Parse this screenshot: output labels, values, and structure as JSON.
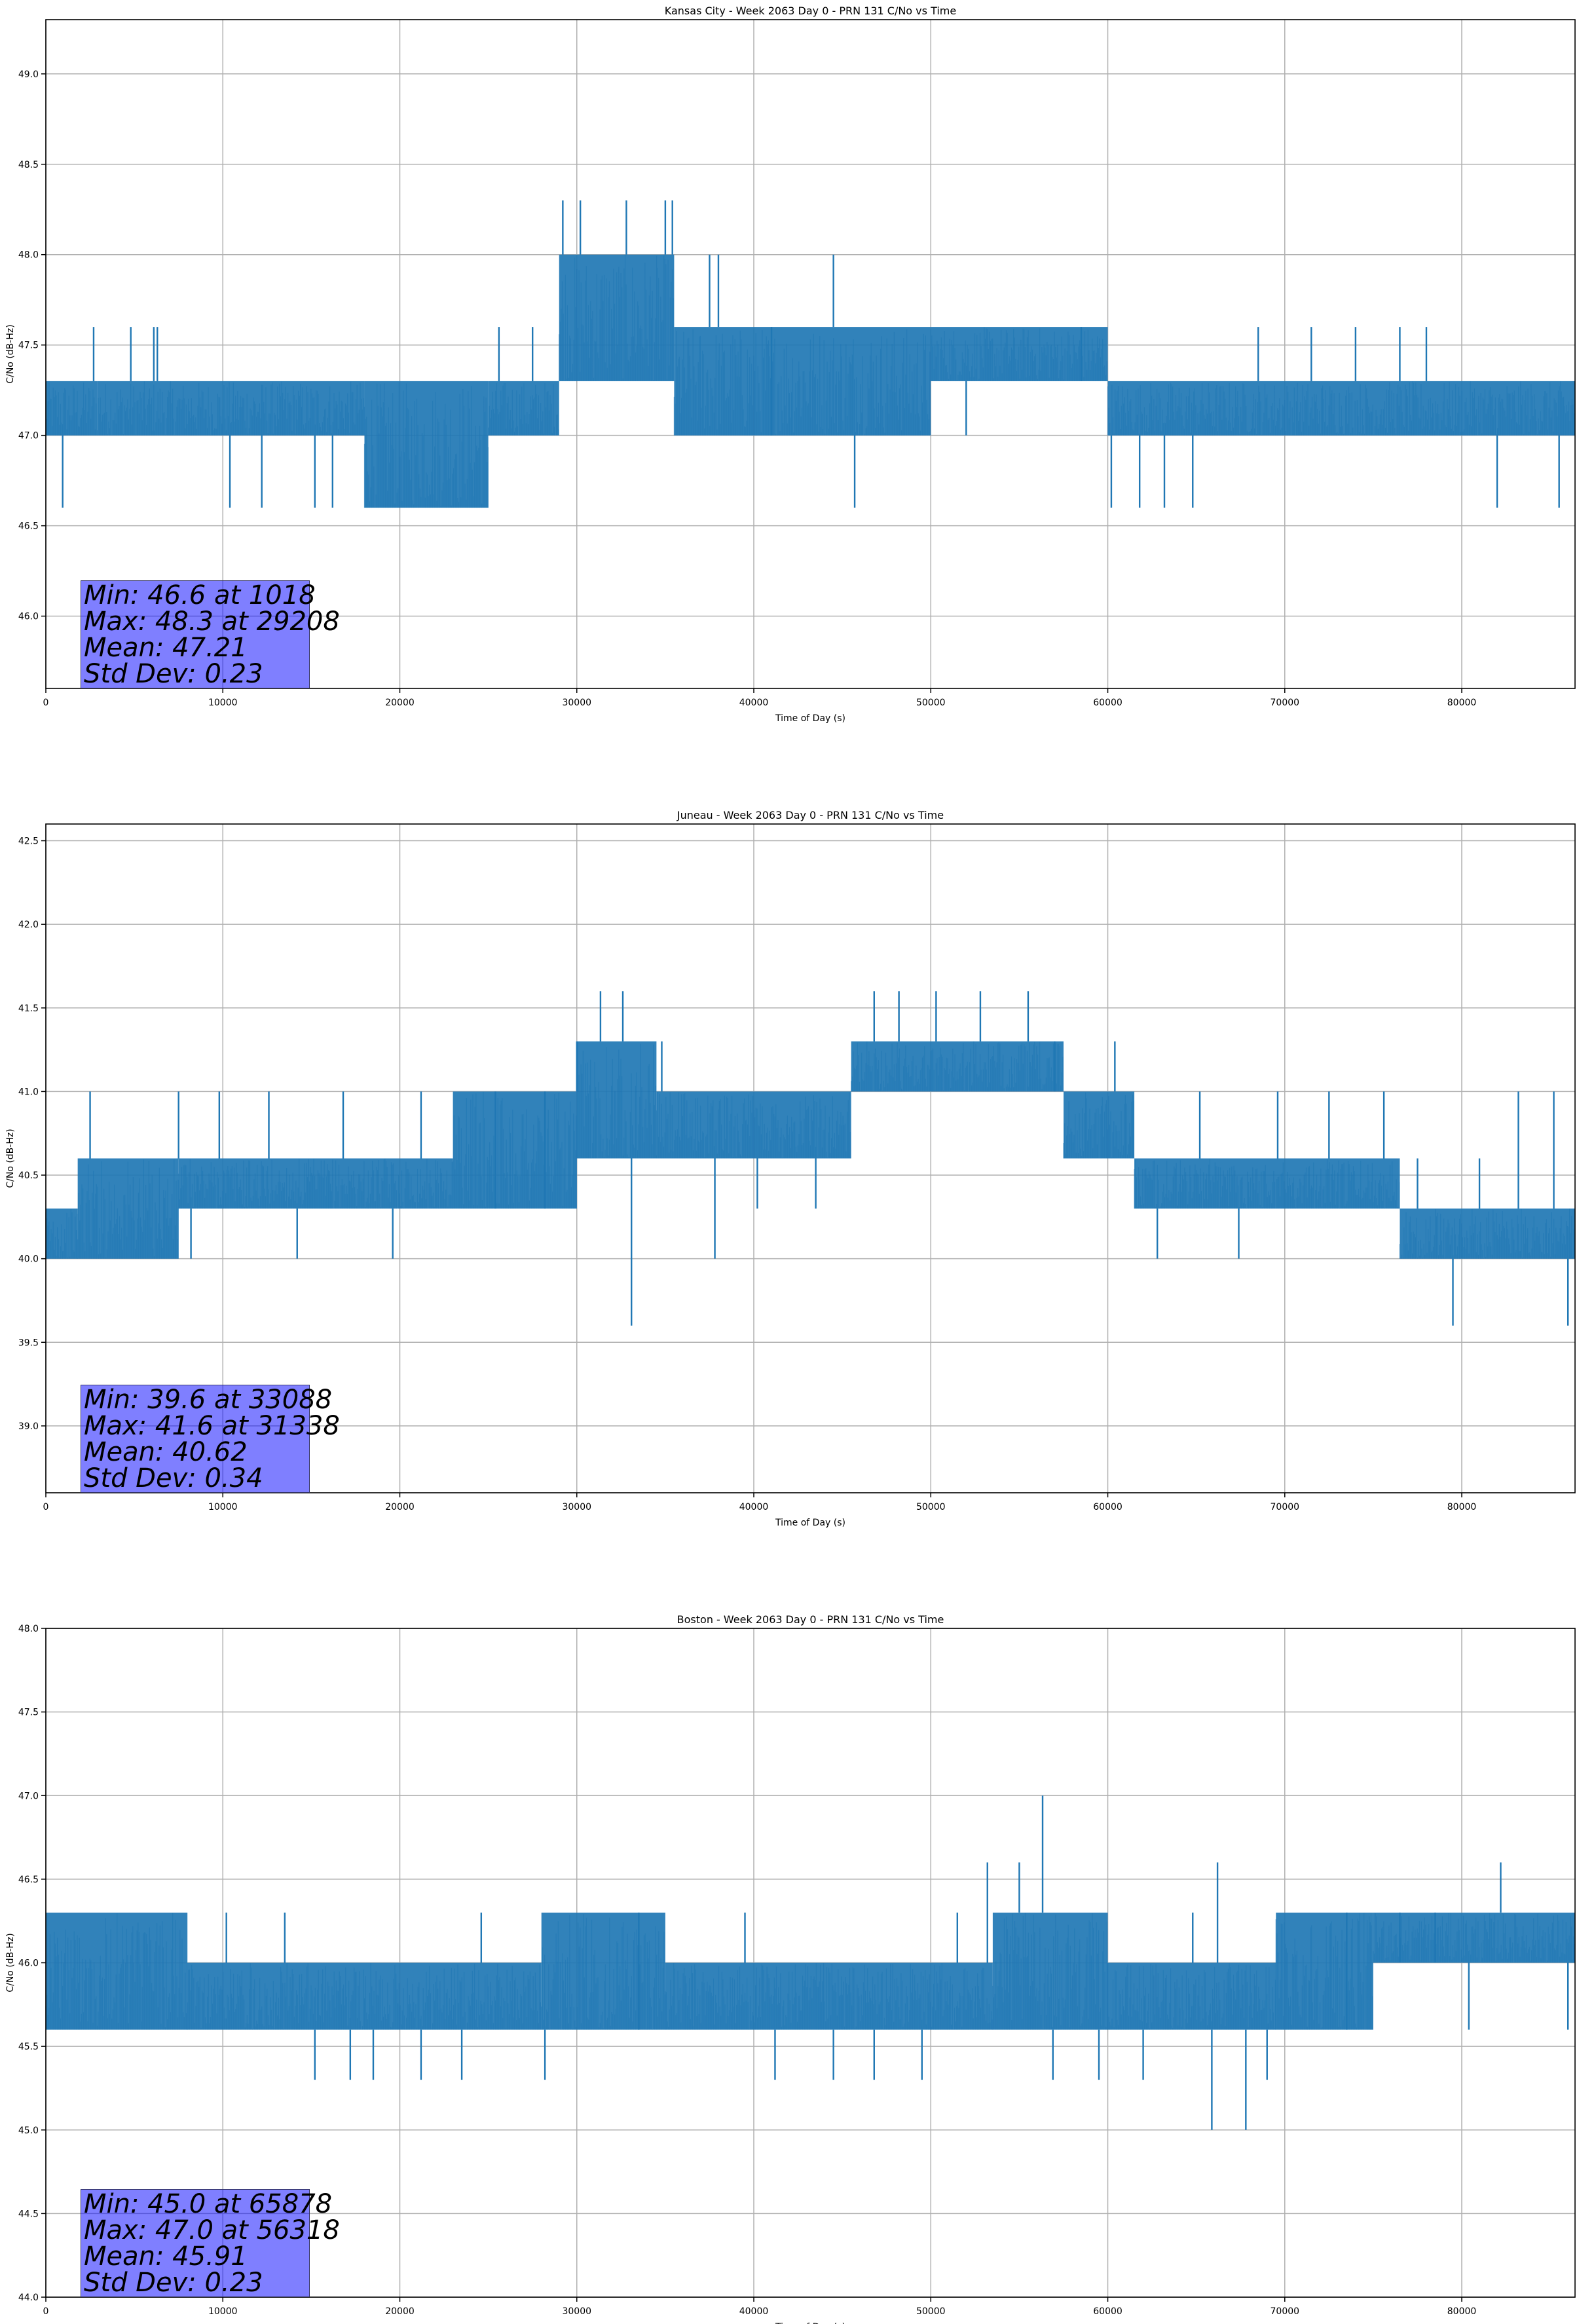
{
  "colors": {
    "line": "#1f77b4",
    "grid": "#b0b0b0",
    "axes": "#000000",
    "stats_box": "#8080ff"
  },
  "chart_data": [
    {
      "type": "line",
      "title": "Kansas City - Week 2063 Day 0 - PRN 131 C/No vs Time",
      "xlabel": "Time of Day (s)",
      "ylabel": "C/No (dB-Hz)",
      "xlim": [
        0,
        86400
      ],
      "ylim": [
        45.6,
        49.3
      ],
      "xticks": [
        "0",
        "10000",
        "20000",
        "30000",
        "40000",
        "50000",
        "60000",
        "70000",
        "80000"
      ],
      "yticks": [
        "46.0",
        "46.5",
        "47.0",
        "47.5",
        "48.0",
        "48.5",
        "49.0"
      ],
      "grid": true,
      "stats": [
        "Min: 46.6 at 1018",
        "Max: 48.3 at 29208",
        "Mean: 47.21",
        "Std Dev: 0.23"
      ],
      "series": [
        {
          "segments": [
            {
              "x": [
                0,
                2900
              ],
              "lo": 47.0,
              "hi": 47.3
            },
            {
              "x": [
                2900,
                18000
              ],
              "lo": 47.0,
              "hi": 47.3
            },
            {
              "x": [
                18000,
                25000
              ],
              "lo": 46.6,
              "hi": 47.3
            },
            {
              "x": [
                25000,
                29000
              ],
              "lo": 47.0,
              "hi": 47.3
            },
            {
              "x": [
                29000,
                35500
              ],
              "lo": 47.3,
              "hi": 48.0
            },
            {
              "x": [
                35500,
                50000
              ],
              "lo": 47.0,
              "hi": 47.6
            },
            {
              "x": [
                50000,
                60000
              ],
              "lo": 47.3,
              "hi": 47.6
            },
            {
              "x": [
                60000,
                86400
              ],
              "lo": 47.0,
              "hi": 47.3
            }
          ],
          "spikes": [
            {
              "x": 950,
              "y": 46.6
            },
            {
              "x": 2700,
              "y": 47.6
            },
            {
              "x": 4800,
              "y": 47.6
            },
            {
              "x": 6100,
              "y": 47.6
            },
            {
              "x": 6300,
              "y": 47.6
            },
            {
              "x": 10400,
              "y": 46.6
            },
            {
              "x": 12200,
              "y": 46.6
            },
            {
              "x": 15200,
              "y": 46.6
            },
            {
              "x": 16200,
              "y": 46.6
            },
            {
              "x": 25600,
              "y": 47.6
            },
            {
              "x": 27500,
              "y": 47.6
            },
            {
              "x": 29208,
              "y": 48.3
            },
            {
              "x": 30200,
              "y": 48.3
            },
            {
              "x": 32800,
              "y": 48.3
            },
            {
              "x": 35000,
              "y": 48.3
            },
            {
              "x": 35400,
              "y": 48.3
            },
            {
              "x": 37500,
              "y": 48.0
            },
            {
              "x": 38000,
              "y": 48.0
            },
            {
              "x": 41000,
              "y": 47.6
            },
            {
              "x": 44500,
              "y": 48.0
            },
            {
              "x": 45700,
              "y": 46.6
            },
            {
              "x": 52000,
              "y": 47.0
            },
            {
              "x": 58500,
              "y": 47.6
            },
            {
              "x": 60200,
              "y": 46.6
            },
            {
              "x": 61800,
              "y": 46.6
            },
            {
              "x": 63200,
              "y": 46.6
            },
            {
              "x": 64800,
              "y": 46.6
            },
            {
              "x": 68500,
              "y": 47.6
            },
            {
              "x": 71500,
              "y": 47.6
            },
            {
              "x": 74000,
              "y": 47.6
            },
            {
              "x": 76500,
              "y": 47.6
            },
            {
              "x": 78000,
              "y": 47.6
            },
            {
              "x": 82000,
              "y": 46.6
            },
            {
              "x": 85500,
              "y": 46.6
            }
          ]
        }
      ]
    },
    {
      "type": "line",
      "title": "Juneau - Week 2063 Day 0 - PRN 131 C/No vs Time",
      "xlabel": "Time of Day (s)",
      "ylabel": "C/No (dB-Hz)",
      "xlim": [
        0,
        86400
      ],
      "ylim": [
        38.6,
        42.6
      ],
      "xticks": [
        "0",
        "10000",
        "20000",
        "30000",
        "40000",
        "50000",
        "60000",
        "70000",
        "80000"
      ],
      "yticks": [
        "39.0",
        "39.5",
        "40.0",
        "40.5",
        "41.0",
        "41.5",
        "42.0",
        "42.5"
      ],
      "grid": true,
      "stats": [
        "Min: 39.6 at 33088",
        "Max: 41.6 at 31338",
        "Mean: 40.62",
        "Std Dev: 0.34"
      ],
      "series": [
        {
          "segments": [
            {
              "x": [
                0,
                1800
              ],
              "lo": 40.0,
              "hi": 40.3
            },
            {
              "x": [
                1800,
                7500
              ],
              "lo": 40.0,
              "hi": 40.6
            },
            {
              "x": [
                7500,
                23000
              ],
              "lo": 40.3,
              "hi": 40.6
            },
            {
              "x": [
                23000,
                30000
              ],
              "lo": 40.3,
              "hi": 41.0
            },
            {
              "x": [
                30000,
                34500
              ],
              "lo": 40.6,
              "hi": 41.3
            },
            {
              "x": [
                34500,
                45500
              ],
              "lo": 40.6,
              "hi": 41.0
            },
            {
              "x": [
                45500,
                57500
              ],
              "lo": 41.0,
              "hi": 41.3
            },
            {
              "x": [
                57500,
                61500
              ],
              "lo": 40.6,
              "hi": 41.0
            },
            {
              "x": [
                61500,
                76500
              ],
              "lo": 40.3,
              "hi": 40.6
            },
            {
              "x": [
                76500,
                86400
              ],
              "lo": 40.0,
              "hi": 40.3
            }
          ],
          "spikes": [
            {
              "x": 2500,
              "y": 41.0
            },
            {
              "x": 5200,
              "y": 40.0
            },
            {
              "x": 7500,
              "y": 41.0
            },
            {
              "x": 8200,
              "y": 40.0
            },
            {
              "x": 9800,
              "y": 41.0
            },
            {
              "x": 12600,
              "y": 41.0
            },
            {
              "x": 14200,
              "y": 40.0
            },
            {
              "x": 16800,
              "y": 41.0
            },
            {
              "x": 19600,
              "y": 40.0
            },
            {
              "x": 21200,
              "y": 41.0
            },
            {
              "x": 25400,
              "y": 41.0
            },
            {
              "x": 28200,
              "y": 41.0
            },
            {
              "x": 30000,
              "y": 41.3
            },
            {
              "x": 31338,
              "y": 41.6
            },
            {
              "x": 32600,
              "y": 41.6
            },
            {
              "x": 33088,
              "y": 39.6
            },
            {
              "x": 34800,
              "y": 41.3
            },
            {
              "x": 37800,
              "y": 40.0
            },
            {
              "x": 40200,
              "y": 40.3
            },
            {
              "x": 43500,
              "y": 40.3
            },
            {
              "x": 46800,
              "y": 41.6
            },
            {
              "x": 48200,
              "y": 41.6
            },
            {
              "x": 50300,
              "y": 41.6
            },
            {
              "x": 52800,
              "y": 41.6
            },
            {
              "x": 55500,
              "y": 41.6
            },
            {
              "x": 57000,
              "y": 41.3
            },
            {
              "x": 58600,
              "y": 40.6
            },
            {
              "x": 60400,
              "y": 41.3
            },
            {
              "x": 62800,
              "y": 40.0
            },
            {
              "x": 65200,
              "y": 41.0
            },
            {
              "x": 67400,
              "y": 40.0
            },
            {
              "x": 69600,
              "y": 41.0
            },
            {
              "x": 72500,
              "y": 41.0
            },
            {
              "x": 75600,
              "y": 41.0
            },
            {
              "x": 77500,
              "y": 40.6
            },
            {
              "x": 79500,
              "y": 39.6
            },
            {
              "x": 81000,
              "y": 40.6
            },
            {
              "x": 83200,
              "y": 41.0
            },
            {
              "x": 85200,
              "y": 41.0
            },
            {
              "x": 86000,
              "y": 39.6
            }
          ]
        }
      ]
    },
    {
      "type": "line",
      "title": "Boston - Week 2063 Day 0 - PRN 131 C/No vs Time",
      "xlabel": "Time of Day (s)",
      "ylabel": "C/No (dB-Hz)",
      "xlim": [
        0,
        86400
      ],
      "ylim": [
        44.0,
        48.0
      ],
      "xticks": [
        "0",
        "10000",
        "20000",
        "30000",
        "40000",
        "50000",
        "60000",
        "70000",
        "80000"
      ],
      "yticks": [
        "44.0",
        "44.5",
        "45.0",
        "45.5",
        "46.0",
        "46.5",
        "47.0",
        "47.5",
        "48.0"
      ],
      "grid": true,
      "stats": [
        "Min: 45.0 at 65878",
        "Max: 47.0 at 56318",
        "Mean: 45.91",
        "Std Dev: 0.23"
      ],
      "series": [
        {
          "segments": [
            {
              "x": [
                0,
                8000
              ],
              "lo": 45.6,
              "hi": 46.3
            },
            {
              "x": [
                8000,
                28000
              ],
              "lo": 45.6,
              "hi": 46.0
            },
            {
              "x": [
                28000,
                35000
              ],
              "lo": 45.6,
              "hi": 46.3
            },
            {
              "x": [
                35000,
                53500
              ],
              "lo": 45.6,
              "hi": 46.0
            },
            {
              "x": [
                53500,
                60000
              ],
              "lo": 45.6,
              "hi": 46.3
            },
            {
              "x": [
                60000,
                69500
              ],
              "lo": 45.6,
              "hi": 46.0
            },
            {
              "x": [
                69500,
                75000
              ],
              "lo": 45.6,
              "hi": 46.3
            },
            {
              "x": [
                75000,
                86400
              ],
              "lo": 46.0,
              "hi": 46.3
            }
          ],
          "spikes": [
            {
              "x": 1800,
              "y": 45.6
            },
            {
              "x": 5200,
              "y": 45.6
            },
            {
              "x": 8500,
              "y": 45.6
            },
            {
              "x": 10200,
              "y": 46.3
            },
            {
              "x": 13500,
              "y": 46.3
            },
            {
              "x": 15200,
              "y": 45.3
            },
            {
              "x": 17200,
              "y": 45.3
            },
            {
              "x": 18500,
              "y": 45.3
            },
            {
              "x": 21200,
              "y": 45.3
            },
            {
              "x": 23500,
              "y": 45.3
            },
            {
              "x": 24600,
              "y": 46.3
            },
            {
              "x": 28200,
              "y": 45.3
            },
            {
              "x": 33500,
              "y": 46.3
            },
            {
              "x": 39500,
              "y": 46.3
            },
            {
              "x": 41200,
              "y": 45.3
            },
            {
              "x": 44500,
              "y": 45.3
            },
            {
              "x": 46800,
              "y": 45.3
            },
            {
              "x": 49500,
              "y": 45.3
            },
            {
              "x": 51500,
              "y": 46.3
            },
            {
              "x": 53200,
              "y": 46.6
            },
            {
              "x": 55000,
              "y": 46.6
            },
            {
              "x": 56318,
              "y": 47.0
            },
            {
              "x": 56900,
              "y": 45.3
            },
            {
              "x": 59500,
              "y": 45.3
            },
            {
              "x": 62000,
              "y": 45.3
            },
            {
              "x": 64800,
              "y": 46.3
            },
            {
              "x": 65878,
              "y": 45.0
            },
            {
              "x": 66200,
              "y": 46.6
            },
            {
              "x": 67800,
              "y": 45.0
            },
            {
              "x": 69000,
              "y": 45.3
            },
            {
              "x": 73500,
              "y": 46.3
            },
            {
              "x": 76500,
              "y": 46.3
            },
            {
              "x": 78500,
              "y": 46.3
            },
            {
              "x": 80400,
              "y": 45.6
            },
            {
              "x": 82200,
              "y": 46.6
            },
            {
              "x": 86000,
              "y": 45.6
            }
          ]
        }
      ]
    }
  ]
}
